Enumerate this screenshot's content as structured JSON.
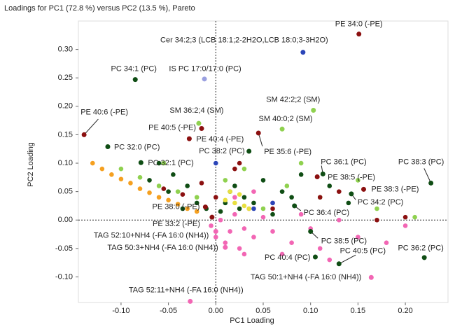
{
  "chart_data": {
    "type": "scatter",
    "title": "Loadings for PC1 (72.8 %) versus PC2 (13.5 %), Pareto",
    "x_label": "PC1 Loading",
    "y_label": "PC2 Loading",
    "xlim": [
      -0.145,
      0.245
    ],
    "ylim": [
      -0.145,
      0.35
    ],
    "xticks": [
      {
        "value": -0.1,
        "label": "-0.10"
      },
      -0.05,
      {
        "value": 0,
        "label": "0.00"
      },
      0.05,
      {
        "value": 0.1,
        "label": "0.10"
      },
      0.15,
      {
        "value": 0.2,
        "label": "0.20"
      }
    ],
    "yticks": [
      {
        "value": -0.1,
        "label": "-0.10"
      },
      -0.05,
      {
        "value": 0,
        "label": "0.00"
      },
      0.05,
      {
        "value": 0.1,
        "label": "0.10"
      },
      0.15,
      {
        "value": 0.2,
        "label": "0.20"
      },
      0.25,
      {
        "value": 0.3,
        "label": "0.30"
      }
    ],
    "zero_lines": true,
    "series": [
      {
        "color": "#0f4d14",
        "x": [
          -0.07,
          -0.05,
          -0.045,
          -0.03,
          -0.02,
          -0.01,
          0.005,
          0.01,
          0.02,
          0.025,
          0.03,
          0.04,
          0.05,
          0.06,
          0.07,
          0.08,
          0.09,
          0.12,
          0.14,
          -0.06,
          -0.035,
          0.015
        ],
        "y": [
          0.07,
          0.05,
          0.08,
          0.06,
          0.03,
          0.02,
          0.015,
          0.03,
          0.06,
          0.02,
          0.04,
          0.03,
          0.07,
          0.01,
          0.05,
          0.04,
          0.08,
          0.06,
          0.03,
          0.1,
          0.02,
          0.05
        ]
      },
      {
        "color": "#f266b4",
        "x": [
          -0.005,
          0.0,
          0.005,
          0.01,
          0.015,
          0.02,
          0.025,
          0.03,
          0.035,
          0.04,
          0.05,
          0.06,
          0.07,
          0.08,
          0.09,
          0.1,
          0.11,
          0.13,
          0.15,
          0.18,
          0.2,
          0.02,
          0.04,
          0.06,
          0.03,
          0.12
        ],
        "y": [
          -0.01,
          -0.03,
          0.0,
          -0.04,
          -0.02,
          0.01,
          -0.05,
          -0.015,
          0.02,
          -0.03,
          0.005,
          -0.02,
          -0.06,
          -0.04,
          0.01,
          -0.015,
          -0.05,
          0.0,
          -0.03,
          -0.04,
          -0.01,
          0.04,
          0.05,
          0.03,
          -0.06,
          -0.07
        ]
      },
      {
        "color": "#f5a020",
        "x": [
          -0.13,
          -0.12,
          -0.11,
          -0.1,
          -0.09,
          -0.08,
          -0.07,
          -0.06,
          -0.05,
          -0.04,
          -0.03,
          -0.02
        ],
        "y": [
          0.1,
          0.09,
          0.08,
          0.072,
          0.065,
          0.055,
          0.048,
          0.04,
          0.035,
          0.028,
          0.02,
          0.015
        ]
      },
      {
        "color": "#8fd14f",
        "x": [
          -0.1,
          -0.08,
          -0.06,
          -0.04,
          -0.02,
          0.01,
          0.03,
          0.05,
          0.075,
          0.09,
          0.11,
          0.15,
          0.17,
          0.21,
          -0.055
        ],
        "y": [
          0.09,
          0.075,
          0.06,
          0.05,
          0.04,
          0.07,
          0.09,
          0.02,
          0.06,
          0.1,
          0.04,
          0.07,
          0.02,
          0.005,
          0.1
        ]
      },
      {
        "color": "#8b1010",
        "x": [
          -0.055,
          -0.035,
          -0.015,
          0.0,
          0.02,
          0.06,
          0.11,
          0.13,
          0.17,
          0.2,
          0.025
        ],
        "y": [
          0.055,
          0.045,
          0.065,
          0.04,
          0.09,
          0.02,
          0.04,
          0.05,
          0.0,
          0.005,
          0.1
        ]
      },
      {
        "color": "#e8e040",
        "x": [
          0.015,
          0.02,
          0.025,
          0.03,
          0.01,
          0.035
        ],
        "y": [
          0.05,
          0.03,
          0.045,
          0.025,
          0.035,
          0.02
        ]
      },
      {
        "color": "#2b45b8",
        "x": [
          0.0,
          0.04,
          0.06
        ],
        "y": [
          0.1,
          0.02,
          0.03
        ]
      }
    ],
    "annotations": [
      {
        "label": "PE 34:0 (-PE)",
        "x": 0.151,
        "y": 0.327,
        "color": "#8b1010"
      },
      {
        "label": "Cer 34:2;3 (LCB 18:1;2-2H2O,LCB 18:0;3-3H2O)",
        "x": 0.092,
        "y": 0.295,
        "color": "#2b45b8"
      },
      {
        "label": "PC 34:1 (PC)",
        "x": -0.085,
        "y": 0.247,
        "color": "#0f4d14"
      },
      {
        "label": "IS PC 17:0/17:0 (PC)",
        "x": -0.012,
        "y": 0.248,
        "color": "#9aa0e0"
      },
      {
        "label": "PE 40:6 (-PE)",
        "x": -0.139,
        "y": 0.15,
        "color": "#8b1010"
      },
      {
        "label": "SM 42:2;2 (SM)",
        "x": 0.103,
        "y": 0.193,
        "color": "#8fd14f"
      },
      {
        "label": "SM 36:2;4 (SM)",
        "x": -0.018,
        "y": 0.17,
        "color": "#8fd14f"
      },
      {
        "label": "SM 40:0;2 (SM)",
        "x": 0.07,
        "y": 0.16,
        "color": "#8fd14f"
      },
      {
        "label": "PE 40:5 (-PE)",
        "x": -0.015,
        "y": 0.161,
        "color": "#8b1010"
      },
      {
        "label": "PE 40:4 (-PE)",
        "x": -0.028,
        "y": 0.143,
        "color": "#8b1010"
      },
      {
        "label": "PC 38:2 (PC)",
        "x": 0.035,
        "y": 0.121,
        "color": "#0f4d14"
      },
      {
        "label": "PE 35:6 (-PE)",
        "x": 0.045,
        "y": 0.153,
        "color": "#8b1010"
      },
      {
        "label": "PC 32:0 (PC)",
        "x": -0.114,
        "y": 0.129,
        "color": "#0f4d14"
      },
      {
        "label": "PC 32:1 (PC)",
        "x": -0.079,
        "y": 0.101,
        "color": "#0f4d14"
      },
      {
        "label": "PC 36:1 (PC)",
        "x": 0.113,
        "y": 0.081,
        "color": "#0f4d14"
      },
      {
        "label": "PE 38:5 (-PE)",
        "x": 0.107,
        "y": 0.076,
        "color": "#8b1010"
      },
      {
        "label": "PC 38:3 (PC)",
        "x": 0.227,
        "y": 0.065,
        "color": "#0f4d14"
      },
      {
        "label": "PE 38:3 (-PE)",
        "x": 0.156,
        "y": 0.054,
        "color": "#8b1010"
      },
      {
        "label": "PC 34:2 (PC)",
        "x": 0.143,
        "y": 0.046,
        "color": "#0f4d14"
      },
      {
        "label": "PC 36:4 (PC)",
        "x": 0.083,
        "y": 0.025,
        "color": "#0f4d14"
      },
      {
        "label": "PE 38:0 (-PE)",
        "x": -0.011,
        "y": 0.023,
        "color": "#8b1010"
      },
      {
        "label": "PE 33:2 (-PE)",
        "x": -0.004,
        "y": 0.005,
        "color": "#8b1010"
      },
      {
        "label": "TAG 52:10+NH4 (-FA 16:0 (NH4))",
        "x": 0.0,
        "y": -0.02,
        "color": "#f266b4"
      },
      {
        "label": "TAG 50:3+NH4 (-FA 16:0 (NH4))",
        "x": 0.01,
        "y": -0.048,
        "color": "#f266b4"
      },
      {
        "label": "PC 38:5 (PC)",
        "x": 0.1,
        "y": -0.02,
        "color": "#0f4d14"
      },
      {
        "label": "PC 40:4 (PC)",
        "x": 0.105,
        "y": -0.065,
        "color": "#0f4d14"
      },
      {
        "label": "PC 40:5 (PC)",
        "x": 0.13,
        "y": -0.077,
        "color": "#0f4d14"
      },
      {
        "label": "PC 36:2 (PC)",
        "x": 0.22,
        "y": -0.066,
        "color": "#0f4d14"
      },
      {
        "label": "TAG 50:1+NH4 (-FA 16:0 (NH4))",
        "x": 0.164,
        "y": -0.101,
        "color": "#f266b4"
      },
      {
        "label": "TAG 52:11+NH4 (-FA 16:0 (NH4))",
        "x": -0.027,
        "y": -0.143,
        "color": "#f266b4"
      }
    ]
  }
}
